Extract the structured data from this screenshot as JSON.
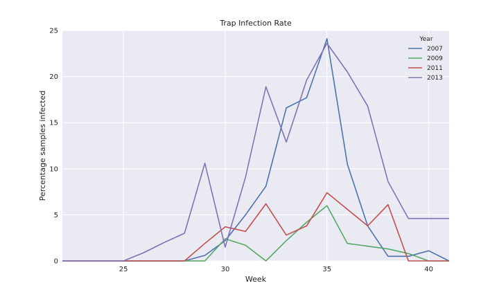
{
  "chart_data": {
    "type": "line",
    "title": "Trap Infection Rate",
    "xlabel": "Week",
    "ylabel": "Percentage samples infected",
    "xlim": [
      22,
      41
    ],
    "ylim": [
      0,
      25
    ],
    "xticks": [
      25,
      30,
      35,
      40
    ],
    "yticks": [
      0,
      5,
      10,
      15,
      20,
      25
    ],
    "grid": true,
    "legend": {
      "title": "Year",
      "position": "top-right"
    },
    "series": [
      {
        "name": "2007",
        "color": "#4c72b0",
        "points": [
          [
            22,
            0
          ],
          [
            23,
            0
          ],
          [
            24,
            0
          ],
          [
            25,
            0
          ],
          [
            26,
            0
          ],
          [
            27,
            0
          ],
          [
            28,
            0
          ],
          [
            29,
            0.6
          ],
          [
            30,
            2.2
          ],
          [
            31,
            5
          ],
          [
            32,
            8.1
          ],
          [
            33,
            16.6
          ],
          [
            34,
            17.7
          ],
          [
            35,
            24.1
          ],
          [
            36,
            10.5
          ],
          [
            37,
            3.8
          ],
          [
            38,
            0.5
          ],
          [
            39,
            0.5
          ],
          [
            40,
            1.1
          ],
          [
            41,
            0
          ]
        ]
      },
      {
        "name": "2009",
        "color": "#55a868",
        "points": [
          [
            22,
            0
          ],
          [
            23,
            0
          ],
          [
            24,
            0
          ],
          [
            25,
            0
          ],
          [
            26,
            0
          ],
          [
            27,
            0
          ],
          [
            28,
            0
          ],
          [
            29,
            0
          ],
          [
            30,
            2.4
          ],
          [
            31,
            1.7
          ],
          [
            32,
            0
          ],
          [
            33,
            2.2
          ],
          [
            34,
            4.2
          ],
          [
            35,
            6
          ],
          [
            36,
            1.9
          ],
          [
            37,
            1.6
          ],
          [
            38,
            1.3
          ],
          [
            39,
            0.8
          ],
          [
            40,
            0
          ],
          [
            41,
            0
          ]
        ]
      },
      {
        "name": "2011",
        "color": "#c44e52",
        "points": [
          [
            22,
            0
          ],
          [
            23,
            0
          ],
          [
            24,
            0
          ],
          [
            25,
            0
          ],
          [
            26,
            0
          ],
          [
            27,
            0
          ],
          [
            28,
            0
          ],
          [
            29,
            1.9
          ],
          [
            30,
            3.7
          ],
          [
            31,
            3.2
          ],
          [
            32,
            6.2
          ],
          [
            33,
            2.8
          ],
          [
            34,
            3.8
          ],
          [
            35,
            7.4
          ],
          [
            36,
            5.6
          ],
          [
            37,
            3.8
          ],
          [
            38,
            6.1
          ],
          [
            39,
            0
          ],
          [
            40,
            0
          ],
          [
            41,
            0
          ]
        ]
      },
      {
        "name": "2013",
        "color": "#8172b2",
        "points": [
          [
            22,
            0
          ],
          [
            23,
            0
          ],
          [
            24,
            0
          ],
          [
            25,
            0
          ],
          [
            26,
            0.9
          ],
          [
            27,
            2
          ],
          [
            28,
            3
          ],
          [
            29,
            10.6
          ],
          [
            30,
            1.5
          ],
          [
            31,
            9.1
          ],
          [
            32,
            18.9
          ],
          [
            33,
            12.9
          ],
          [
            34,
            19.6
          ],
          [
            35,
            23.6
          ],
          [
            36,
            20.5
          ],
          [
            37,
            16.8
          ],
          [
            38,
            8.6
          ],
          [
            39,
            4.6
          ],
          [
            40,
            4.6
          ],
          [
            41,
            4.6
          ]
        ]
      }
    ]
  }
}
